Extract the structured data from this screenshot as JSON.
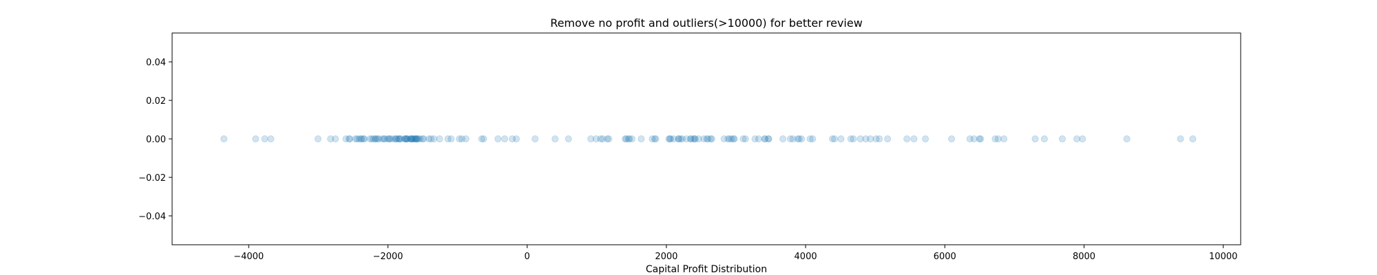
{
  "chart_data": {
    "type": "scatter",
    "title": "Remove no profit and outliers(>10000) for better review",
    "xlabel": "Capital Profit Distribution",
    "ylabel": "",
    "xlim": [
      -5100,
      10250
    ],
    "ylim": [
      -0.055,
      0.055
    ],
    "xticks": [
      -4000,
      -2000,
      0,
      2000,
      4000,
      6000,
      8000,
      10000
    ],
    "xtick_labels": [
      "−4000",
      "−2000",
      "0",
      "2000",
      "4000",
      "6000",
      "8000",
      "10000"
    ],
    "yticks": [
      -0.04,
      -0.02,
      0.0,
      0.02,
      0.04
    ],
    "ytick_labels": [
      "−0.04",
      "−0.02",
      "0.00",
      "0.02",
      "0.04"
    ],
    "grid": false,
    "marker_color": "#1f77b4",
    "marker_alpha": 0.2,
    "series": [
      {
        "x": [
          -4356,
          -3900,
          -3770,
          -3683,
          -3004,
          -2824,
          -2754,
          -2603,
          -2559,
          -2547,
          -2467,
          -2444,
          -2415,
          -2392,
          -2377,
          -2352,
          -2339,
          -2258,
          -2231,
          -2206,
          -2179,
          -2174,
          -2149,
          -2129,
          -2080,
          -2057,
          -2042,
          -2001,
          -1980,
          -1977,
          -1944,
          -1902,
          -1887,
          -1876,
          -1848,
          -1844,
          -1825,
          -1816,
          -1762,
          -1755,
          -1741,
          -1735,
          -1721,
          -1719,
          -1672,
          -1669,
          -1668,
          -1651,
          -1648,
          -1628,
          -1617,
          -1602,
          -1594,
          -1590,
          -1579,
          -1564,
          -1539,
          -1504,
          -1485,
          -1411,
          -1380,
          -1340,
          -1258,
          -1138,
          -1092,
          -974,
          -937,
          -880,
          -653,
          -625,
          -419,
          -323,
          -213,
          -155,
          114,
          401,
          594,
          914,
          991,
          1055,
          1086,
          1151,
          1173,
          1409,
          1424,
          1455,
          1471,
          1506,
          1639,
          1797,
          1831,
          1848,
          2036,
          2050,
          2062,
          2105,
          2174,
          2176,
          2202,
          2228,
          2290,
          2346,
          2354,
          2387,
          2407,
          2414,
          2463,
          2538,
          2580,
          2597,
          2635,
          2653,
          2829,
          2885,
          2907,
          2936,
          2964,
          2977,
          3103,
          3137,
          3273,
          3325,
          3411,
          3418,
          3464,
          3471,
          3674,
          3781,
          3818,
          3887,
          3908,
          3942,
          4064,
          4101,
          4386,
          4416,
          4508,
          4650,
          4687,
          4787,
          4865,
          4931,
          5013,
          5060,
          5178,
          5455,
          5556,
          5721,
          6097,
          6360,
          6418,
          6497,
          6514,
          6723,
          6767,
          6849,
          7298,
          7430,
          7688,
          7896,
          7978,
          8614,
          9386,
          9562
        ],
        "y": "all 0.0"
      }
    ]
  }
}
